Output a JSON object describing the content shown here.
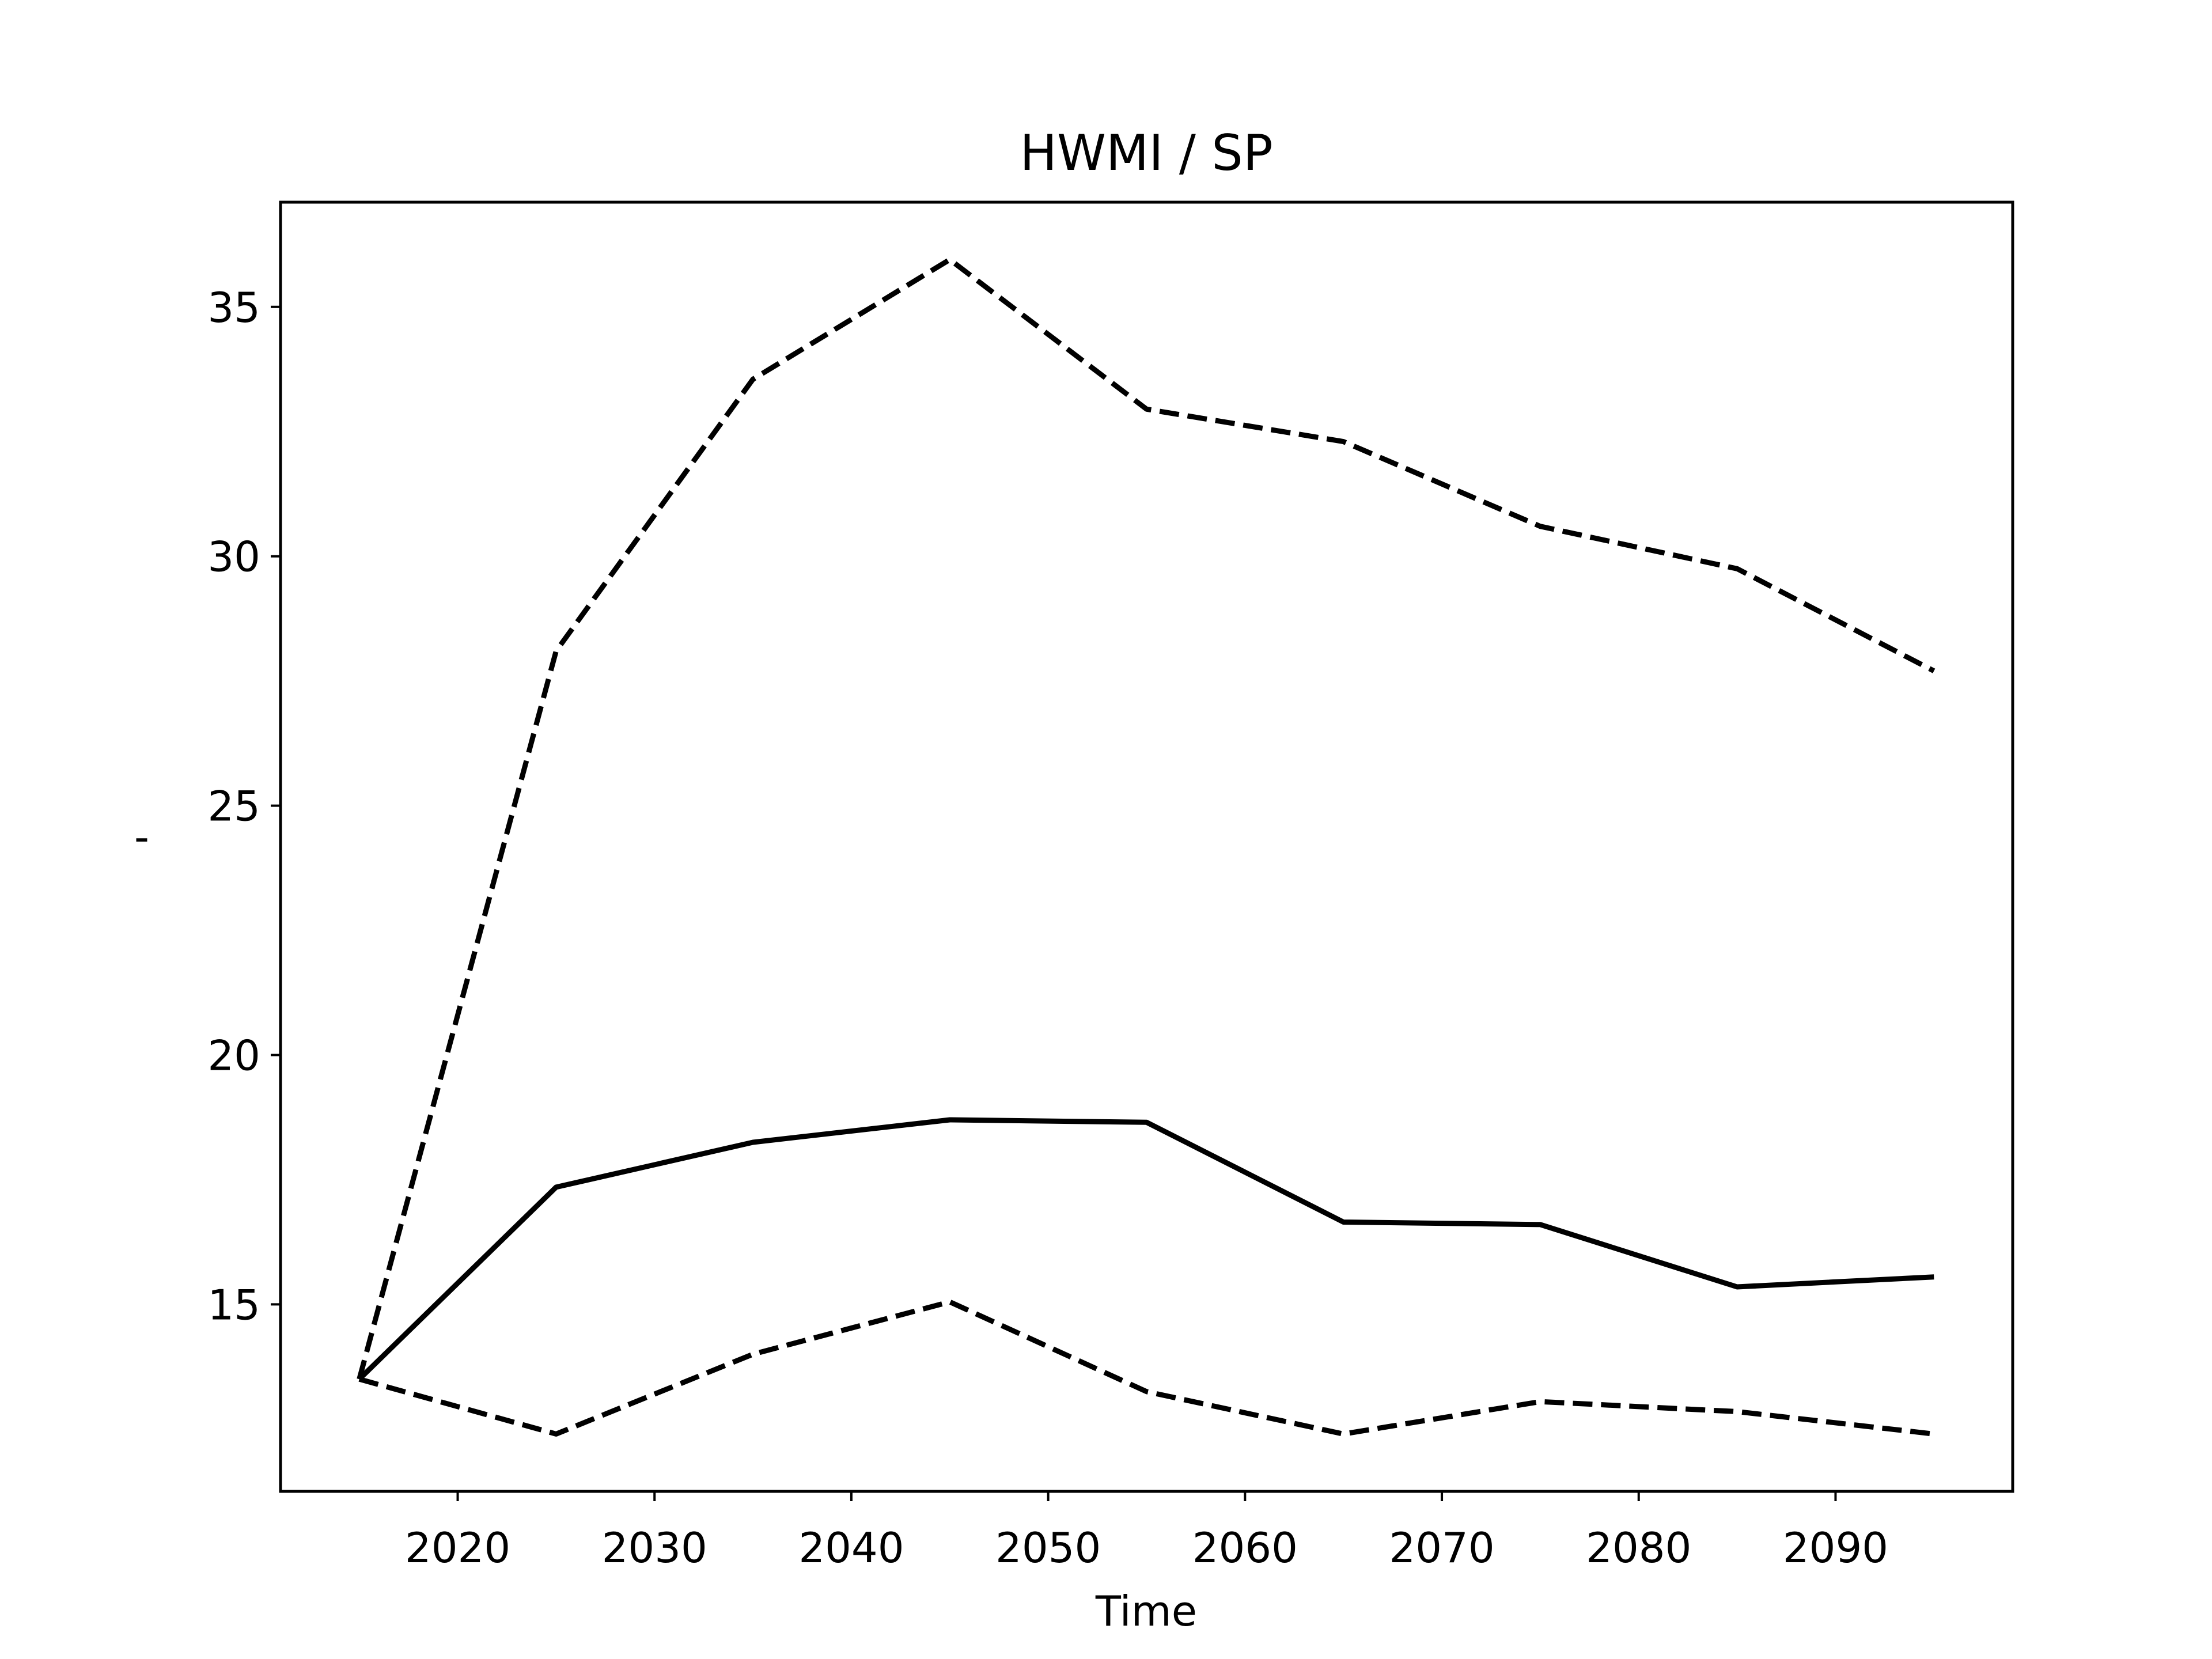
{
  "chart_data": {
    "type": "line",
    "title": "HWMI / SP",
    "xlabel": "Time",
    "ylabel": "-",
    "x": [
      2015,
      2025,
      2035,
      2045,
      2055,
      2065,
      2075,
      2085,
      2095
    ],
    "series": [
      {
        "style": "solid",
        "values": [
          13.5,
          17.35,
          18.25,
          18.7,
          18.65,
          16.65,
          16.6,
          15.35,
          15.55
        ]
      },
      {
        "style": "dashed",
        "values": [
          13.5,
          28.1,
          33.55,
          35.95,
          32.95,
          32.3,
          30.6,
          29.75,
          27.7
        ]
      },
      {
        "style": "dashed",
        "values": [
          13.5,
          12.4,
          14.0,
          15.05,
          13.25,
          12.4,
          13.05,
          12.85,
          12.4
        ]
      }
    ],
    "xlim": [
      2011,
      2099
    ],
    "ylim": [
      11.25,
      37.1
    ],
    "xticks": [
      "2020",
      "2030",
      "2040",
      "2050",
      "2060",
      "2070",
      "2080",
      "2090"
    ],
    "yticks": [
      "15",
      "20",
      "25",
      "30",
      "35"
    ],
    "grid": false,
    "colors": {
      "line": "#000000",
      "axes": "#000000",
      "background": "#ffffff"
    }
  }
}
